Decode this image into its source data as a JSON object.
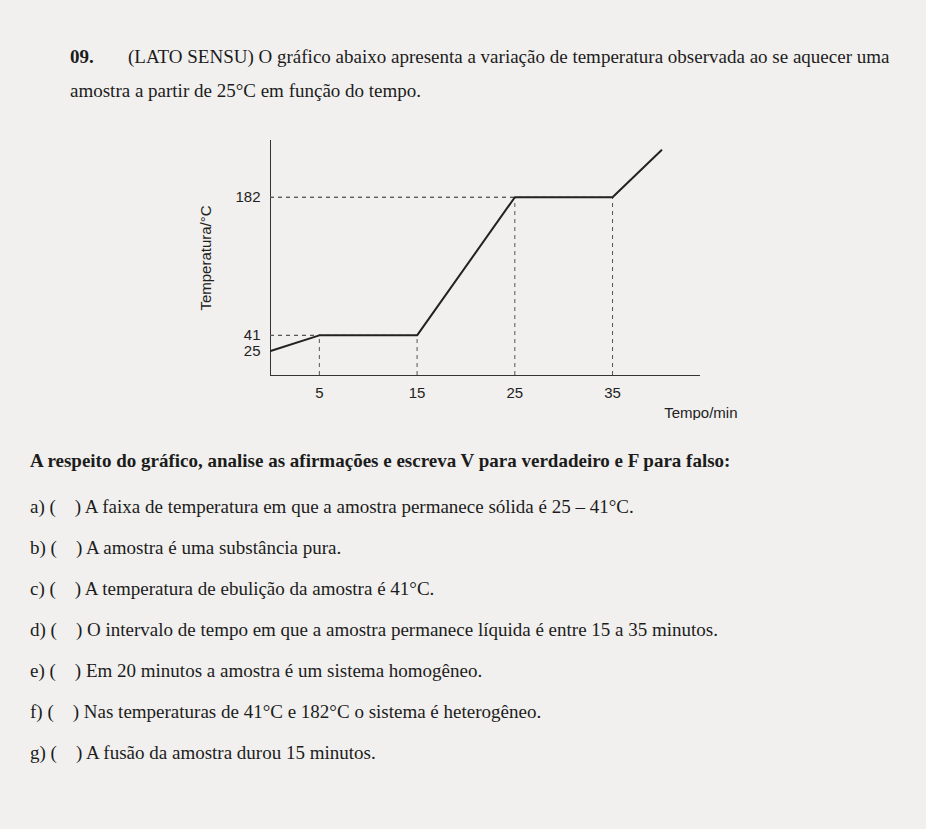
{
  "header": {
    "number": "09.",
    "text": "(LATO SENSU) O gráfico abaixo apresenta a variação de temperatura observada ao se aquecer uma amostra a partir de 25°C em função do tempo."
  },
  "chart_data": {
    "type": "line",
    "x": [
      0,
      5,
      15,
      25,
      35,
      40
    ],
    "values": [
      25,
      41,
      41,
      182,
      182,
      230
    ],
    "color": "#222222",
    "xlim": [
      0,
      44
    ],
    "ylim": [
      0,
      240
    ],
    "xticks": [
      5,
      15,
      25,
      35
    ],
    "yticks": [
      25,
      41,
      182
    ],
    "x_label": "Tempo/min",
    "y_label": "Temperatura/°C"
  },
  "prompt": "A respeito do gráfico, analise as afirmações e escreva V para verdadeiro e F para falso:",
  "items": [
    "a) (    ) A faixa de temperatura em que a amostra permanece sólida é 25 – 41°C.",
    "b) (    ) A amostra é uma substância pura.",
    "c) (    ) A temperatura de ebulição da amostra é 41°C.",
    "d) (    ) O intervalo de tempo em que a amostra permanece líquida é entre 15 a 35 minutos.",
    "e) (    ) Em 20 minutos a amostra é um sistema homogêneo.",
    "f) (    ) Nas temperaturas de 41°C e 182°C o sistema é heterogêneo.",
    "g) (    ) A fusão da amostra durou 15 minutos."
  ]
}
